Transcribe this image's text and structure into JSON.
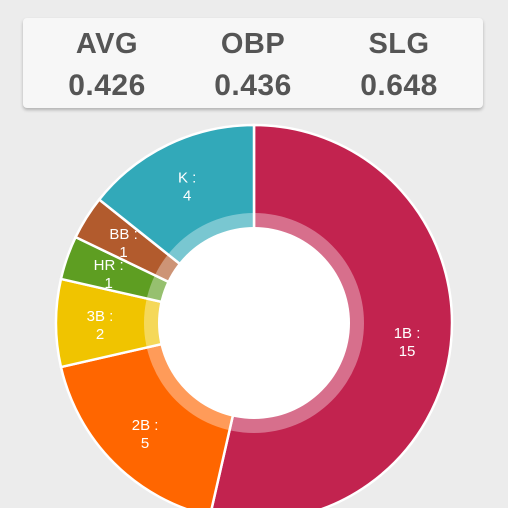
{
  "stats": [
    {
      "label": "AVG",
      "value": "0.426"
    },
    {
      "label": "OBP",
      "value": "0.436"
    },
    {
      "label": "SLG",
      "value": "0.648"
    }
  ],
  "chart_data": {
    "type": "pie",
    "donut": true,
    "slices": [
      {
        "name": "1B",
        "label": "1B :",
        "value": 15,
        "color": "#c2234f"
      },
      {
        "name": "2B",
        "label": "2B :",
        "value": 5,
        "color": "#ff6600"
      },
      {
        "name": "3B",
        "label": "3B :",
        "value": 2,
        "color": "#f0c400"
      },
      {
        "name": "HR",
        "label": "HR :",
        "value": 1,
        "color": "#5e9e22"
      },
      {
        "name": "BB",
        "label": "BB :",
        "value": 1,
        "color": "#b25b2d"
      },
      {
        "name": "K",
        "label": "K :",
        "value": 4,
        "color": "#32a9b9"
      }
    ]
  }
}
